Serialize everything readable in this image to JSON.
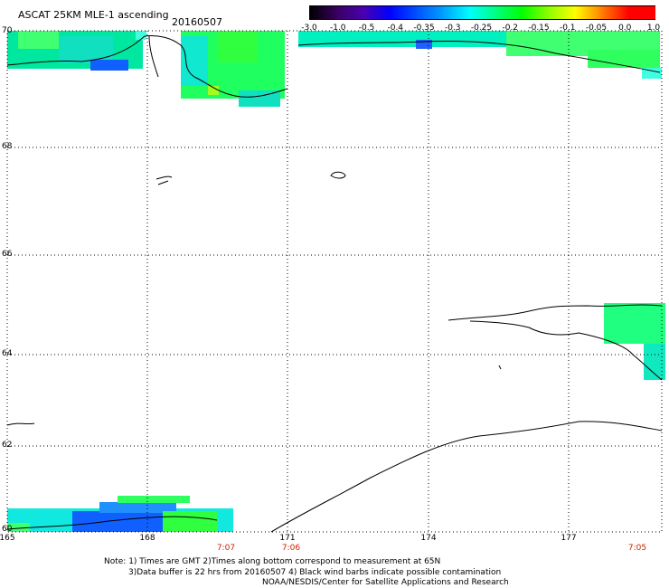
{
  "header": {
    "title": "ASCAT 25KM MLE-1 ascending",
    "date": "20160507"
  },
  "colorbar": {
    "labels": [
      "-3.0",
      "-1.0",
      "-0.5",
      "-0.4",
      "-0.35",
      "-0.3",
      "-0.25",
      "-0.2",
      "-0.15",
      "-0.1",
      "-0.05",
      "0.0",
      "1.0"
    ],
    "colors": [
      "#000000",
      "#3a0060",
      "#4a00b0",
      "#0000ff",
      "#0050ff",
      "#00a0ff",
      "#00ffff",
      "#00ff80",
      "#00ff00",
      "#90ff00",
      "#ffff00",
      "#ff8000",
      "#ff0000"
    ]
  },
  "map": {
    "lat_labels": [
      "70",
      "68",
      "66",
      "64",
      "62",
      "60"
    ],
    "lon_labels": [
      "165",
      "168",
      "171",
      "174",
      "177"
    ],
    "time_labels": [
      "7:07",
      "7:06",
      "7:05"
    ],
    "colors": {
      "background": "#ffffff",
      "grid": "#000000",
      "coast": "#000000",
      "time_text": "#cc2200"
    }
  },
  "footer": {
    "line1": "Note: 1) Times are GMT 2)Times along bottom correspond to measurement at 65N",
    "line2": "3)Data buffer is 22 hrs from 20160507 4) Black wind barbs indicate possible contamination",
    "line3": "NOAA/NESDIS/Center for Satellite Applications and Research"
  }
}
